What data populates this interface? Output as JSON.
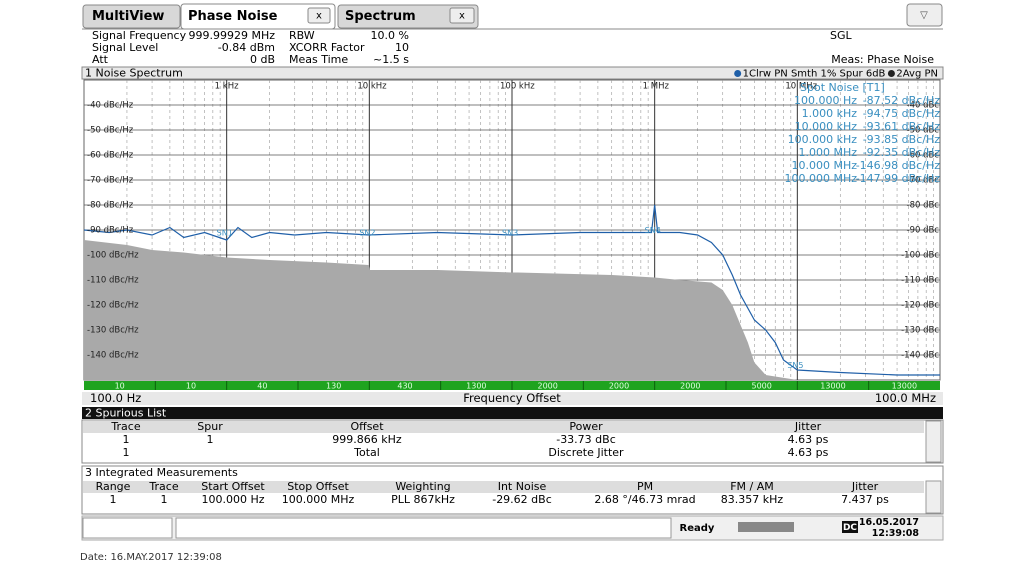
{
  "tabs": [
    "MultiView",
    "Phase Noise",
    "Spectrum"
  ],
  "info": {
    "left": [
      {
        "label": "Signal Frequency",
        "value": "999.99929 MHz"
      },
      {
        "label": "Signal Level",
        "value": "-0.84 dBm"
      },
      {
        "label": "Att",
        "value": "0 dB"
      }
    ],
    "mid": [
      {
        "label": "RBW",
        "value": "10.0 %"
      },
      {
        "label": "XCORR Factor",
        "value": "10"
      },
      {
        "label": "Meas Time",
        "value": "~1.5 s"
      }
    ],
    "mode": "SGL",
    "meas": "Meas: Phase Noise"
  },
  "window1": {
    "title": "1 Noise Spectrum",
    "chart": {
      "type": "line",
      "log_x": true,
      "grid": true,
      "xlim": [
        100,
        100000000
      ],
      "ylim": [
        -150,
        -30
      ],
      "xticks": [
        {
          "value": 1000,
          "label": "1 kHz"
        },
        {
          "value": 10000,
          "label": "10 kHz"
        },
        {
          "value": 100000,
          "label": "100 kHz"
        },
        {
          "value": 1000000,
          "label": "1 MHz"
        },
        {
          "value": 10000000,
          "label": "10 MHz"
        }
      ],
      "yticks": [
        {
          "value": -40,
          "label": "-40 dBc/Hz"
        },
        {
          "value": -50,
          "label": "-50 dBc/Hz"
        },
        {
          "value": -60,
          "label": "-60 dBc/Hz"
        },
        {
          "value": -70,
          "label": "-70 dBc/Hz"
        },
        {
          "value": -80,
          "label": "-80 dBc/Hz"
        },
        {
          "value": -90,
          "label": "-90 dBc/Hz"
        },
        {
          "value": -100,
          "label": "-100 dBc/Hz"
        },
        {
          "value": -110,
          "label": "-110 dBc/Hz"
        },
        {
          "value": -120,
          "label": "-120 dBc/Hz"
        },
        {
          "value": -130,
          "label": "-130 dBc/Hz"
        },
        {
          "value": -140,
          "label": "-140 dBc/Hz"
        }
      ],
      "y_right_labels": [
        "-40 dBc",
        "-50 dBc",
        "-60 dBc",
        "-70 dBc",
        "-80 dBc",
        "-90 dBc",
        "-100 dBc",
        "-110 dBc",
        "-120 dBc",
        "-130 dBc",
        "-140 dBc"
      ],
      "series": [
        {
          "name": "1Clrw PN Smth 1% Spur 6dB",
          "color": "#1f5fa8",
          "style": "line",
          "x": [
            100,
            150,
            200,
            300,
            400,
            500,
            700,
            1000,
            1200,
            1500,
            2000,
            3000,
            5000,
            10000,
            30000,
            100000,
            300000,
            700000,
            950000,
            999866,
            1050000,
            1500000,
            2000000,
            2500000,
            3000000,
            3500000,
            4000000,
            5000000,
            6000000,
            7000000,
            8000000,
            10000000,
            20000000,
            50000000,
            100000000
          ],
          "values": [
            -90,
            -91,
            -90,
            -92,
            -89,
            -93,
            -91,
            -94,
            -89,
            -93,
            -91,
            -92,
            -91,
            -92,
            -91,
            -92,
            -91,
            -91,
            -91,
            -80,
            -91,
            -91,
            -92,
            -95,
            -100,
            -108,
            -116,
            -126,
            -130,
            -135,
            -142,
            -146,
            -147,
            -148,
            -148
          ]
        },
        {
          "name": "2Avg PN",
          "color": "#a9a9a9",
          "style": "area",
          "x": [
            100,
            200,
            300,
            500,
            1000,
            2000,
            5000,
            9900,
            10100,
            30000,
            100000,
            110000,
            500000,
            1000000,
            1500000,
            2500000,
            3000000,
            3500000,
            4000000,
            4500000,
            5000000,
            6000000,
            10000000,
            100000000
          ],
          "values": [
            -94,
            -96,
            -98,
            -99,
            -101,
            -102,
            -103,
            -104,
            -106,
            -106,
            -107,
            -107,
            -108,
            -109,
            -110,
            -111,
            -114,
            -120,
            -128,
            -135,
            -143,
            -148,
            -150,
            -150
          ]
        }
      ],
      "markers": [
        {
          "label": "SN1",
          "x": 1000,
          "y": -90
        },
        {
          "label": "SN2",
          "x": 10000,
          "y": -90
        },
        {
          "label": "SN3",
          "x": 100000,
          "y": -90
        },
        {
          "label": "SN4",
          "x": 1000000,
          "y": -89
        },
        {
          "label": "SN5",
          "x": 10000000,
          "y": -143
        }
      ]
    },
    "spot_noise": {
      "title": "Spot Noise [T1]",
      "rows": [
        [
          "100.000 Hz",
          "-87.52 dBc/Hz"
        ],
        [
          "1.000 kHz",
          "-94.75 dBc/Hz"
        ],
        [
          "10.000 kHz",
          "-93.61 dBc/Hz"
        ],
        [
          "100.000 kHz",
          "-93.85 dBc/Hz"
        ],
        [
          "1.000 MHz",
          "-92.35 dBc/Hz"
        ],
        [
          "10.000 MHz",
          "-146.98 dBc/Hz"
        ],
        [
          "100.000 MHz",
          "-147.99 dBc/Hz"
        ]
      ]
    },
    "span_bar": [
      "10",
      "10",
      "40",
      "130",
      "430",
      "1300",
      "2000",
      "2000",
      "2000",
      "5000",
      "13000",
      "13000"
    ],
    "x_start": "100.0 Hz",
    "x_label": "Frequency Offset",
    "x_end": "100.0 MHz"
  },
  "spurious": {
    "title": "2 Spurious List",
    "columns": [
      "Trace",
      "Spur",
      "Offset",
      "Power",
      "Jitter"
    ],
    "rows": [
      [
        "1",
        "1",
        "999.866 kHz",
        "-33.73 dBc",
        "4.63 ps"
      ],
      [
        "1",
        null,
        "Total",
        "Discrete Jitter",
        "4.63 ps"
      ]
    ]
  },
  "integrated": {
    "title": "3 Integrated Measurements",
    "columns": [
      "Range",
      "Trace",
      "Start Offset",
      "Stop Offset",
      "Weighting",
      "Int Noise",
      "PM",
      "FM / AM",
      "Jitter"
    ],
    "rows": [
      [
        "1",
        "1",
        "100.000 Hz",
        "100.000 MHz",
        "PLL 867kHz",
        "-29.62 dBc",
        "2.68 °/46.73 mrad",
        "83.357 kHz",
        "7.437 ps"
      ]
    ]
  },
  "status": {
    "state": "Ready",
    "dc": "DC",
    "date": "16.05.2017",
    "time": "12:39:08"
  },
  "footer": "Date: 16.MAY.2017  12:39:08"
}
